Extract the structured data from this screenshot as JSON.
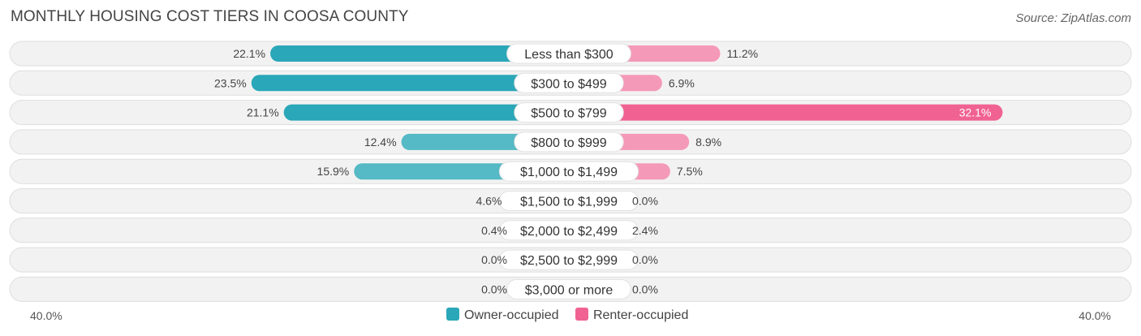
{
  "title": "MONTHLY HOUSING COST TIERS IN COOSA COUNTY",
  "source": "Source: ZipAtlas.com",
  "axis": {
    "left_label": "40.0%",
    "right_label": "40.0%"
  },
  "legend": [
    {
      "label": "Owner-occupied",
      "color": "#2aa7b8"
    },
    {
      "label": "Renter-occupied",
      "color": "#f06292"
    }
  ],
  "chart_data": {
    "type": "bar",
    "orientation": "diverging-horizontal",
    "title": "MONTHLY HOUSING COST TIERS IN COOSA COUNTY",
    "xlim": [
      -40,
      40
    ],
    "categories": [
      "Less than $300",
      "$300 to $499",
      "$500 to $799",
      "$800 to $999",
      "$1,000 to $1,499",
      "$1,500 to $1,999",
      "$2,000 to $2,499",
      "$2,500 to $2,999",
      "$3,000 or more"
    ],
    "series": [
      {
        "name": "Owner-occupied",
        "color": "#2aa7b8",
        "values": [
          22.1,
          23.5,
          21.1,
          12.4,
          15.9,
          4.6,
          0.4,
          0.0,
          0.0
        ],
        "labels": [
          "22.1%",
          "23.5%",
          "21.1%",
          "12.4%",
          "15.9%",
          "4.6%",
          "0.4%",
          "0.0%",
          "0.0%"
        ]
      },
      {
        "name": "Renter-occupied",
        "color": "#f06292",
        "values": [
          11.2,
          6.9,
          32.1,
          8.9,
          7.5,
          0.0,
          2.4,
          0.0,
          0.0
        ],
        "labels": [
          "11.2%",
          "6.9%",
          "32.1%",
          "8.9%",
          "7.5%",
          "0.0%",
          "2.4%",
          "0.0%",
          "0.0%"
        ]
      }
    ],
    "legend_position": "bottom-center"
  }
}
